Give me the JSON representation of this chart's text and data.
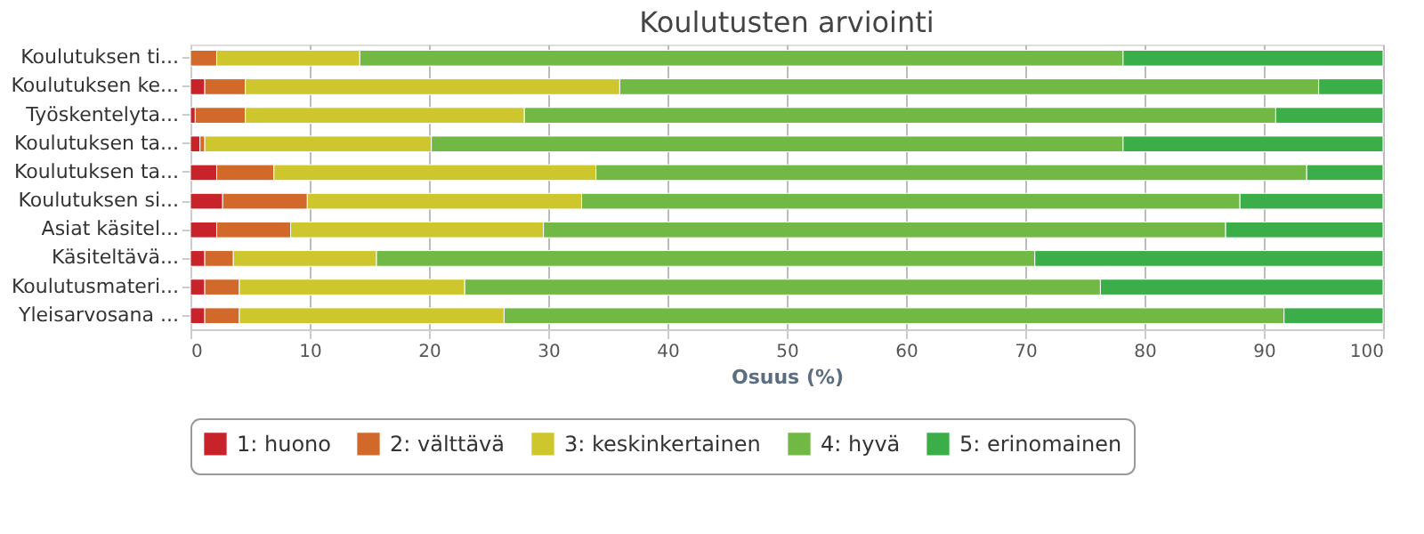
{
  "chart_data": {
    "type": "bar",
    "orientation": "horizontal",
    "stacked": true,
    "title": "Koulutusten arviointi",
    "xlabel": "Osuus (%)",
    "categories": [
      "Koulutuksen ti...",
      "Koulutuksen ke...",
      "Työskentelyta...",
      "Koulutuksen ta...",
      "Koulutuksen ta...",
      "Koulutuksen si...",
      "Asiat käsitel...",
      "Käsiteltävä...",
      "Koulutusmateri...",
      "Yleisarvosana ..."
    ],
    "series": [
      {
        "name": "1: huono",
        "color": "#c8232b",
        "values": [
          0,
          1.2,
          0.4,
          0.8,
          2.2,
          2.7,
          2.2,
          1.2,
          1.2,
          1.2
        ]
      },
      {
        "name": "2: välttävä",
        "color": "#d0692a",
        "values": [
          2.2,
          3.4,
          4.2,
          0.4,
          4.8,
          7.1,
          6.2,
          2.4,
          2.9,
          2.9
        ]
      },
      {
        "name": "3: keskinkertainen",
        "color": "#cdc72d",
        "values": [
          12,
          31.4,
          23.4,
          19,
          27,
          23,
          21.2,
          12,
          18.9,
          22.2
        ]
      },
      {
        "name": "4: hyvä",
        "color": "#72b845",
        "values": [
          64,
          58.6,
          63,
          58,
          59.6,
          55.2,
          57.2,
          55.2,
          53.3,
          65.4
        ]
      },
      {
        "name": "5: erinomainen",
        "color": "#3bae4a",
        "values": [
          21.8,
          5.4,
          9,
          21.8,
          6.4,
          12,
          13.2,
          29.2,
          23.7,
          8.3
        ]
      }
    ],
    "xlim": [
      0,
      100
    ],
    "xticks": [
      0,
      10,
      20,
      30,
      40,
      50,
      60,
      70,
      80,
      90,
      100
    ],
    "grid": "x",
    "legend": "bottom"
  }
}
